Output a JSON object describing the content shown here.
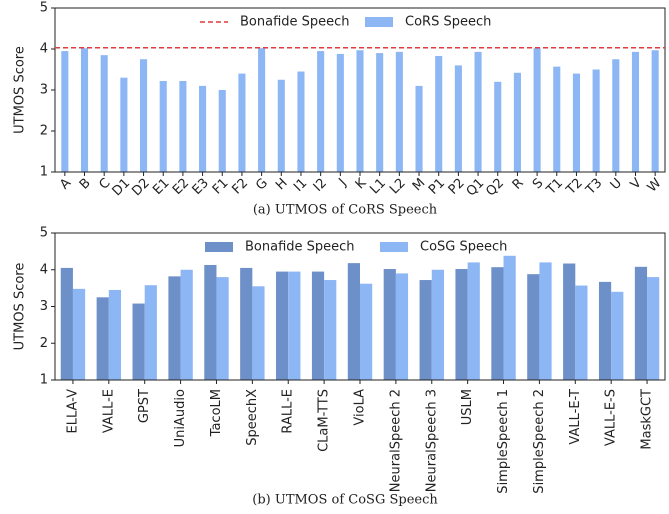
{
  "chart_data": [
    {
      "type": "bar",
      "caption": "(a) UTMOS of CoRS Speech",
      "ylabel": "UTMOS Score",
      "categories": [
        "A",
        "B",
        "C",
        "D1",
        "D2",
        "E1",
        "E2",
        "E3",
        "F1",
        "F2",
        "G",
        "H",
        "I1",
        "I2",
        "J",
        "K",
        "L1",
        "L2",
        "M",
        "P1",
        "P2",
        "Q1",
        "Q2",
        "R",
        "S",
        "T1",
        "T2",
        "T3",
        "U",
        "V",
        "W"
      ],
      "series": [
        {
          "name": "CoRS Speech",
          "color": "#8db6f4",
          "values": [
            3.95,
            4.02,
            3.85,
            3.3,
            3.75,
            3.22,
            3.22,
            3.1,
            3.0,
            3.4,
            4.02,
            3.25,
            3.45,
            3.95,
            3.88,
            3.97,
            3.9,
            3.93,
            3.1,
            3.83,
            3.6,
            3.93,
            3.2,
            3.42,
            4.02,
            3.57,
            3.4,
            3.5,
            3.75,
            3.93,
            3.97
          ]
        }
      ],
      "reference_line": {
        "name": "Bonafide Speech",
        "value": 4.03,
        "color": "#e03a3a"
      },
      "ylim": [
        1,
        5
      ],
      "yticks": [
        1,
        2,
        3,
        4,
        5
      ]
    },
    {
      "type": "grouped_bar",
      "caption": "(b) UTMOS of CoSG Speech",
      "ylabel": "UTMOS Score",
      "categories": [
        "ELLA-V",
        "VALL-E",
        "GPST",
        "UniAudio",
        "TacoLM",
        "SpeechX",
        "RALL-E",
        "CLaM-TTS",
        "VioLA",
        "NeuralSpeech 2",
        "NeuralSpeech 3",
        "USLM",
        "SimpleSpeech 1",
        "SimpleSpeech 2",
        "VALL-E-T",
        "VALL-E-S",
        "MaskGCT"
      ],
      "series": [
        {
          "name": "Bonafide Speech",
          "color": "#6e90c9",
          "values": [
            4.05,
            3.25,
            3.08,
            3.82,
            4.13,
            4.05,
            3.95,
            3.95,
            4.18,
            4.02,
            3.72,
            4.02,
            4.07,
            3.88,
            4.17,
            3.67,
            4.08
          ]
        },
        {
          "name": "CoSG Speech",
          "color": "#8db6f4",
          "values": [
            3.48,
            3.45,
            3.58,
            4.0,
            3.8,
            3.55,
            3.95,
            3.72,
            3.62,
            3.9,
            4.0,
            4.2,
            4.38,
            4.2,
            3.57,
            3.4,
            3.8
          ]
        }
      ],
      "ylim": [
        1,
        5
      ],
      "yticks": [
        1,
        2,
        3,
        4,
        5
      ]
    }
  ]
}
